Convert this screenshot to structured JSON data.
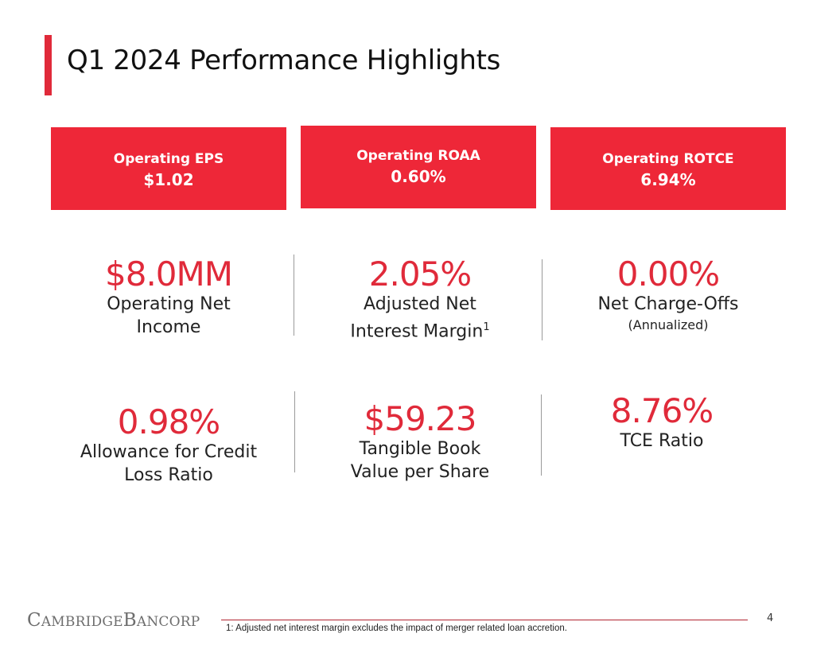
{
  "title": "Q1 2024 Performance Highlights",
  "colors": {
    "accent": "#ee2738",
    "text": "#222222",
    "divider": "#9a9a9a"
  },
  "kpi_boxes": [
    {
      "label": "Operating EPS",
      "value": "$1.02"
    },
    {
      "label": "Operating ROAA",
      "value": "0.60%"
    },
    {
      "label": "Operating ROTCE",
      "value": "6.94%"
    }
  ],
  "metrics": [
    {
      "value": "$8.0MM",
      "label_line1": "Operating Net",
      "label_line2": "Income"
    },
    {
      "value": "2.05%",
      "label_line1": "Adjusted Net",
      "label_line2": "Interest Margin",
      "superscript": "1"
    },
    {
      "value": "0.00%",
      "label_line1": "Net Charge-Offs",
      "note": "(Annualized)"
    },
    {
      "value": "0.98%",
      "label_line1": "Allowance for Credit",
      "label_line2": "Loss Ratio"
    },
    {
      "value": "$59.23",
      "label_line1": "Tangible Book",
      "label_line2": "Value per Share"
    },
    {
      "value": "8.76%",
      "label_line1": "TCE Ratio"
    }
  ],
  "footer": {
    "logo_part1_cap": "C",
    "logo_part1_rest": "AMBRIDGE",
    "logo_part2_cap": "B",
    "logo_part2_rest": "ANCORP",
    "page_number": "4",
    "footnote": "1: Adjusted net interest margin excludes the impact of merger related loan accretion."
  }
}
